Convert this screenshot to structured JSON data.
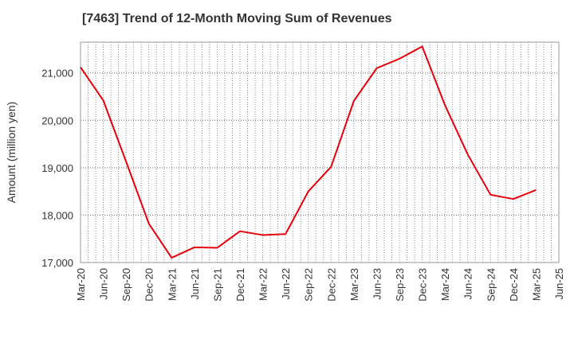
{
  "chart_data": {
    "type": "line",
    "title": "[7463]  Trend of 12-Month Moving Sum of Revenues",
    "xlabel": "",
    "ylabel": "Amount (million yen)",
    "ylim": [
      17000,
      21650
    ],
    "y_ticks": [
      17000,
      18000,
      19000,
      20000,
      21000
    ],
    "y_tick_labels": [
      "17,000",
      "18,000",
      "19,000",
      "20,000",
      "21,000"
    ],
    "x_tick_labels": [
      "Mar-20",
      "Jun-20",
      "Sep-20",
      "Dec-20",
      "Mar-21",
      "Jun-21",
      "Sep-21",
      "Dec-21",
      "Mar-22",
      "Jun-22",
      "Sep-22",
      "Dec-22",
      "Mar-23",
      "Jun-23",
      "Sep-23",
      "Dec-23",
      "Mar-24",
      "Jun-24",
      "Sep-24",
      "Dec-24",
      "Mar-25",
      "Jun-25"
    ],
    "grid": true,
    "series": [
      {
        "color": "#e8000b",
        "x": [
          "Mar-20",
          "Jun-20",
          "Sep-20",
          "Dec-20",
          "Mar-21",
          "Jun-21",
          "Sep-21",
          "Dec-21",
          "Mar-22",
          "Jun-22",
          "Sep-22",
          "Dec-22",
          "Mar-23",
          "Jun-23",
          "Sep-23",
          "Dec-23",
          "Mar-24",
          "Jun-24",
          "Sep-24",
          "Dec-24",
          "Mar-25"
        ],
        "values": [
          21120,
          20420,
          19130,
          17820,
          17100,
          17320,
          17310,
          17660,
          17580,
          17600,
          18500,
          19020,
          20410,
          21100,
          21300,
          21560,
          20320,
          19280,
          18430,
          18340,
          18530
        ]
      }
    ]
  }
}
